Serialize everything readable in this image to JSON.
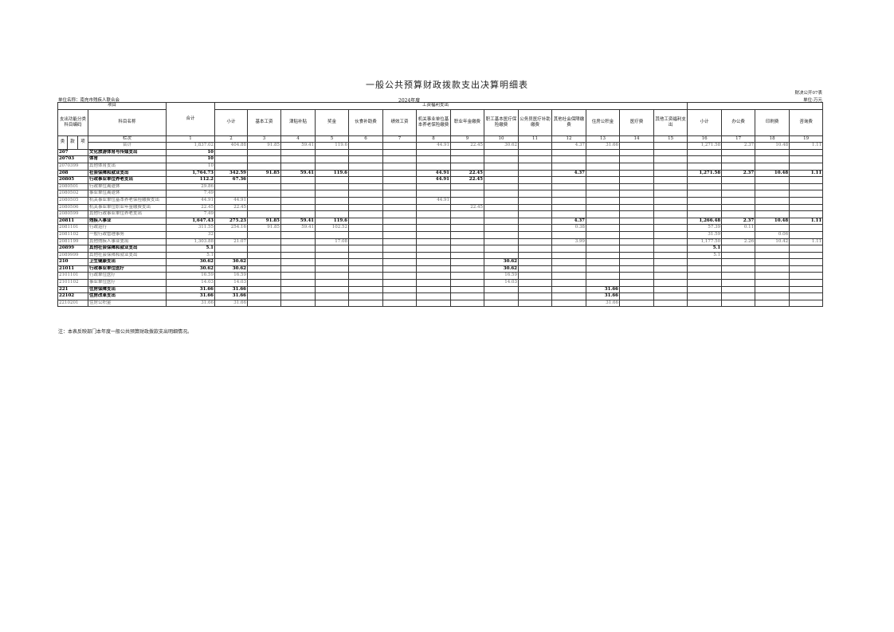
{
  "title": "一般公共预算财政拨款支出决算明细表",
  "form_no": "财决公开07表",
  "unit_name": "单位名称：南充市残疾人联合会",
  "year": "2024年度",
  "currency_unit": "单位:万元",
  "header": {
    "project": "项目",
    "code_label": "支出功能分类科目编码",
    "name_label": "科目名称",
    "total_label": "合计",
    "group_salary": "工资福利支出",
    "group_goods": "",
    "cols": [
      "小计",
      "基本工资",
      "津贴补贴",
      "奖金",
      "伙食补助费",
      "绩效工资",
      "机关事业单位基本养老保险缴费",
      "职业年金缴费",
      "职工基本医疗保险缴费",
      "公务员医疗补助缴费",
      "其他社会保障缴费",
      "住房公积金",
      "医疗费",
      "其他工资福利支出",
      "小计",
      "办公费",
      "印刷费",
      "咨询费"
    ],
    "lei": "类",
    "kuan": "款",
    "xiang": "项",
    "lanci": "栏次",
    "col_numbers": [
      "1",
      "2",
      "3",
      "4",
      "5",
      "6",
      "7",
      "8",
      "9",
      "10",
      "11",
      "12",
      "13",
      "14",
      "15",
      "16",
      "17",
      "18",
      "19"
    ],
    "total_row_label": "合计",
    "total_row": [
      "1,837.02",
      "404.88",
      "91.85",
      "59.41",
      "119.6",
      "",
      "",
      "44.91",
      "22.45",
      "30.62",
      "",
      "4.37",
      "31.66",
      "",
      "",
      "1,271.58",
      "2.37",
      "10.48",
      "1.11"
    ]
  },
  "rows": [
    {
      "code": "207",
      "name": "文化旅游体育与传媒支出",
      "v": [
        "10",
        "",
        "",
        "",
        "",
        "",
        "",
        "",
        "",
        "",
        "",
        "",
        "",
        "",
        "",
        "",
        "",
        "",
        ""
      ]
    },
    {
      "code": "20703",
      "name": "体育",
      "v": [
        "10",
        "",
        "",
        "",
        "",
        "",
        "",
        "",
        "",
        "",
        "",
        "",
        "",
        "",
        "",
        "",
        "",
        "",
        ""
      ]
    },
    {
      "code": "2070399",
      "name": "其他体育支出",
      "v": [
        "10",
        "",
        "",
        "",
        "",
        "",
        "",
        "",
        "",
        "",
        "",
        "",
        "",
        "",
        "",
        "",
        "",
        "",
        ""
      ]
    },
    {
      "code": "208",
      "name": "社会保障和就业支出",
      "v": [
        "1,764.73",
        "342.59",
        "91.85",
        "59.41",
        "119.6",
        "",
        "",
        "44.91",
        "22.45",
        "",
        "",
        "4.37",
        "",
        "",
        "",
        "1,271.58",
        "2.37",
        "10.48",
        "1.11"
      ]
    },
    {
      "code": "20805",
      "name": "行政事业单位养老支出",
      "v": [
        "112.2",
        "67.36",
        "",
        "",
        "",
        "",
        "",
        "44.91",
        "22.45",
        "",
        "",
        "",
        "",
        "",
        "",
        "",
        "",
        "",
        ""
      ]
    },
    {
      "code": "2080501",
      "name": "行政单位离退休",
      "v": [
        "29.86",
        "",
        "",
        "",
        "",
        "",
        "",
        "",
        "",
        "",
        "",
        "",
        "",
        "",
        "",
        "",
        "",
        "",
        ""
      ]
    },
    {
      "code": "2080502",
      "name": "事业单位离退休",
      "v": [
        "7.49",
        "",
        "",
        "",
        "",
        "",
        "",
        "",
        "",
        "",
        "",
        "",
        "",
        "",
        "",
        "",
        "",
        "",
        ""
      ]
    },
    {
      "code": "2080505",
      "name": "机关事业单位基本养老保险缴费支出",
      "v": [
        "44.91",
        "44.91",
        "",
        "",
        "",
        "",
        "",
        "44.91",
        "",
        "",
        "",
        "",
        "",
        "",
        "",
        "",
        "",
        "",
        ""
      ]
    },
    {
      "code": "2080506",
      "name": "机关事业单位职业年金缴费支出",
      "v": [
        "22.45",
        "22.45",
        "",
        "",
        "",
        "",
        "",
        "",
        "22.45",
        "",
        "",
        "",
        "",
        "",
        "",
        "",
        "",
        "",
        ""
      ]
    },
    {
      "code": "2080599",
      "name": "其他行政事业单位养老支出",
      "v": [
        "7.49",
        "",
        "",
        "",
        "",
        "",
        "",
        "",
        "",
        "",
        "",
        "",
        "",
        "",
        "",
        "",
        "",
        "",
        ""
      ]
    },
    {
      "code": "20811",
      "name": "残疾人事业",
      "v": [
        "1,647.43",
        "275.23",
        "91.85",
        "59.41",
        "119.6",
        "",
        "",
        "",
        "",
        "",
        "",
        "4.37",
        "",
        "",
        "",
        "1,266.48",
        "2.37",
        "10.48",
        "1.11"
      ]
    },
    {
      "code": "2081101",
      "name": "行政运行",
      "v": [
        "311.55",
        "254.16",
        "91.85",
        "59.41",
        "102.52",
        "",
        "",
        "",
        "",
        "",
        "",
        "0.38",
        "",
        "",
        "",
        "57.39",
        "0.11",
        "",
        ""
      ]
    },
    {
      "code": "2081102",
      "name": "一般行政管理事务",
      "v": [
        "32",
        "",
        "",
        "",
        "",
        "",
        "",
        "",
        "",
        "",
        "",
        "",
        "",
        "",
        "",
        "31.59",
        "",
        "0.06",
        ""
      ]
    },
    {
      "code": "2081199",
      "name": "其他残疾人事业支出",
      "v": [
        "1,303.88",
        "21.07",
        "",
        "",
        "17.08",
        "",
        "",
        "",
        "",
        "",
        "",
        "3.99",
        "",
        "",
        "",
        "1,177.50",
        "2.26",
        "10.42",
        "1.11"
      ]
    },
    {
      "code": "20899",
      "name": "其他社会保障和就业支出",
      "v": [
        "5.1",
        "",
        "",
        "",
        "",
        "",
        "",
        "",
        "",
        "",
        "",
        "",
        "",
        "",
        "",
        "5.1",
        "",
        "",
        ""
      ]
    },
    {
      "code": "2089999",
      "name": "其他社会保障和就业支出",
      "v": [
        "5.1",
        "",
        "",
        "",
        "",
        "",
        "",
        "",
        "",
        "",
        "",
        "",
        "",
        "",
        "",
        "5.1",
        "",
        "",
        ""
      ]
    },
    {
      "code": "210",
      "name": "卫生健康支出",
      "v": [
        "30.62",
        "30.62",
        "",
        "",
        "",
        "",
        "",
        "",
        "",
        "30.62",
        "",
        "",
        "",
        "",
        "",
        "",
        "",
        "",
        ""
      ]
    },
    {
      "code": "21011",
      "name": "行政事业单位医疗",
      "v": [
        "30.62",
        "30.62",
        "",
        "",
        "",
        "",
        "",
        "",
        "",
        "30.62",
        "",
        "",
        "",
        "",
        "",
        "",
        "",
        "",
        ""
      ]
    },
    {
      "code": "2101101",
      "name": "行政单位医疗",
      "v": [
        "16.59",
        "16.59",
        "",
        "",
        "",
        "",
        "",
        "",
        "",
        "16.59",
        "",
        "",
        "",
        "",
        "",
        "",
        "",
        "",
        ""
      ]
    },
    {
      "code": "2101102",
      "name": "事业单位医疗",
      "v": [
        "14.03",
        "14.03",
        "",
        "",
        "",
        "",
        "",
        "",
        "",
        "14.03",
        "",
        "",
        "",
        "",
        "",
        "",
        "",
        "",
        ""
      ]
    },
    {
      "code": "221",
      "name": "住房保障支出",
      "v": [
        "31.66",
        "31.66",
        "",
        "",
        "",
        "",
        "",
        "",
        "",
        "",
        "",
        "",
        "31.66",
        "",
        "",
        "",
        "",
        "",
        ""
      ]
    },
    {
      "code": "22102",
      "name": "住房改革支出",
      "v": [
        "31.66",
        "31.66",
        "",
        "",
        "",
        "",
        "",
        "",
        "",
        "",
        "",
        "",
        "31.66",
        "",
        "",
        "",
        "",
        "",
        ""
      ]
    },
    {
      "code": "2210201",
      "name": "住房公积金",
      "v": [
        "31.66",
        "31.66",
        "",
        "",
        "",
        "",
        "",
        "",
        "",
        "",
        "",
        "",
        "31.66",
        "",
        "",
        "",
        "",
        "",
        ""
      ]
    }
  ],
  "note": "注：本表反映部门本年度一般公共预算财政拨款支出明细情况。"
}
